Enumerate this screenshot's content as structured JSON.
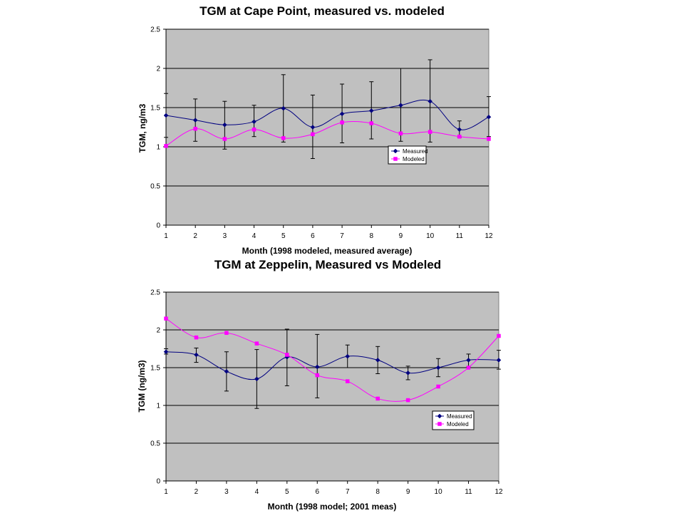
{
  "chart_data": [
    {
      "type": "line",
      "title": "TGM at Cape Point, measured vs. modeled",
      "xlabel": "Month (1998 modeled, measured average)",
      "ylabel": "TGM, ng/m3",
      "categories": [
        1,
        2,
        3,
        4,
        5,
        6,
        7,
        8,
        9,
        10,
        11,
        12
      ],
      "ylim": [
        0,
        2.5
      ],
      "yticks": [
        0,
        0.5,
        1,
        1.5,
        2,
        2.5
      ],
      "ytick_labels": [
        "0",
        "0.5",
        "1",
        "1.5",
        "2",
        "2.5"
      ],
      "grid": true,
      "legend_position": "center-right",
      "plot_bg": "#c0c0c0",
      "series": [
        {
          "name": "Measured",
          "color": "#000080",
          "marker": "diamond",
          "values": [
            1.4,
            1.34,
            1.28,
            1.32,
            1.49,
            1.25,
            1.42,
            1.46,
            1.53,
            1.58,
            1.22,
            1.38
          ],
          "error_low": [
            1.12,
            1.07,
            0.97,
            1.13,
            1.06,
            0.85,
            1.05,
            1.1,
            1.07,
            1.06,
            1.12,
            1.13
          ],
          "error_high": [
            1.68,
            1.61,
            1.58,
            1.53,
            1.92,
            1.66,
            1.8,
            1.83,
            2.0,
            2.11,
            1.33,
            1.64
          ]
        },
        {
          "name": "Modeled",
          "color": "#ff00ff",
          "marker": "square",
          "values": [
            1.01,
            1.23,
            1.1,
            1.22,
            1.11,
            1.16,
            1.31,
            1.3,
            1.17,
            1.19,
            1.13,
            1.1
          ]
        }
      ]
    },
    {
      "type": "line",
      "title": "TGM at Zeppelin, Measured vs Modeled",
      "xlabel": "Month (1998 model; 2001 meas)",
      "ylabel": "TGM (ng/m3)",
      "categories": [
        1,
        2,
        3,
        4,
        5,
        6,
        7,
        8,
        9,
        10,
        11,
        12
      ],
      "ylim": [
        0,
        2.5
      ],
      "yticks": [
        0,
        0.5,
        1,
        1.5,
        2,
        2.5
      ],
      "ytick_labels": [
        "0",
        "0.5",
        "1",
        "1.5",
        "2",
        "2.5"
      ],
      "grid": true,
      "legend_position": "bottom-right",
      "plot_bg": "#c0c0c0",
      "series": [
        {
          "name": "Measured",
          "color": "#000080",
          "marker": "diamond",
          "values": [
            1.71,
            1.67,
            1.45,
            1.35,
            1.64,
            1.51,
            1.65,
            1.6,
            1.43,
            1.5,
            1.6,
            1.6
          ],
          "error_low": [
            1.68,
            1.57,
            1.19,
            0.96,
            1.26,
            1.1,
            1.5,
            1.42,
            1.34,
            1.38,
            1.51,
            1.48
          ],
          "error_high": [
            1.75,
            1.76,
            1.71,
            1.74,
            2.01,
            1.94,
            1.8,
            1.78,
            1.52,
            1.62,
            1.68,
            1.73
          ]
        },
        {
          "name": "Modeled",
          "color": "#ff00ff",
          "marker": "square",
          "values": [
            2.15,
            1.9,
            1.96,
            1.82,
            1.67,
            1.4,
            1.32,
            1.09,
            1.07,
            1.25,
            1.5,
            1.92
          ]
        }
      ]
    }
  ]
}
